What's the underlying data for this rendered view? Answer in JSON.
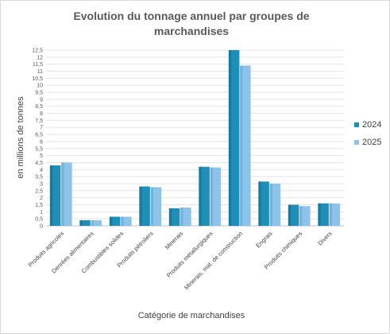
{
  "chart_data": {
    "type": "bar",
    "title": "Evolution du tonnage annuel par groupes de marchandises",
    "xlabel": "Catégorie de marchandises",
    "ylabel": "en millions de tonnes",
    "ylim": [
      0,
      12.5
    ],
    "yticks": [
      0,
      0.5,
      1,
      1.5,
      2,
      2.5,
      3,
      3.5,
      4,
      4.5,
      5,
      5.5,
      6,
      6.5,
      7,
      7.5,
      8,
      8.5,
      9,
      9.5,
      10,
      10.5,
      11,
      11.5,
      12,
      12.5
    ],
    "grid": true,
    "legend": "right",
    "categories": [
      "Produits agricoles",
      "Denrées alimentaires",
      "Combustibles solides",
      "Produits pétroliers",
      "Minerais",
      "Produits métallurgiques",
      "Minerais, mat. de construction",
      "Engrais",
      "Produits chimiques",
      "Divers"
    ],
    "series": [
      {
        "name": "2024",
        "color": "#1F8FB8",
        "values": [
          4.3,
          0.4,
          0.65,
          2.8,
          1.25,
          4.2,
          12.5,
          3.15,
          1.5,
          1.6
        ]
      },
      {
        "name": "2025",
        "color": "#8DC3E8",
        "values": [
          4.5,
          0.4,
          0.65,
          2.75,
          1.3,
          4.15,
          11.4,
          3.0,
          1.4,
          1.6
        ]
      }
    ]
  }
}
